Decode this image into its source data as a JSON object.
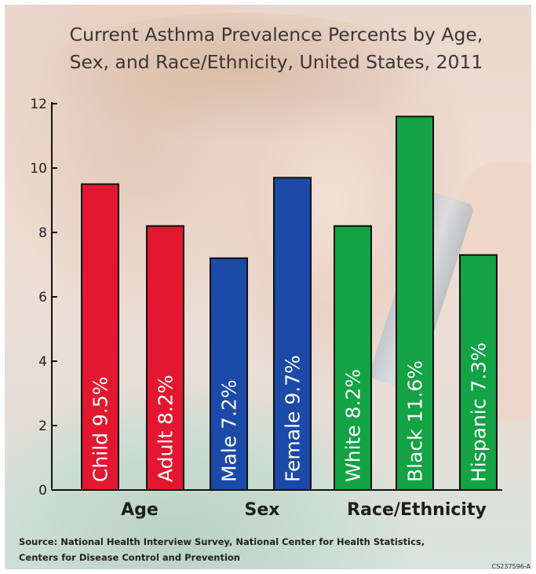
{
  "chart_data": {
    "type": "bar",
    "title": [
      "Current Asthma Prevalence Percents by Age,",
      "Sex, and Race/Ethnicity, United States, 2011"
    ],
    "ylim": [
      0,
      12
    ],
    "yticks": [
      "0",
      "2",
      "4",
      "6",
      "8",
      "10",
      "12"
    ],
    "grid": false,
    "categories": [
      "Child",
      "Adult",
      "Male",
      "Female",
      "White",
      "Black",
      "Hispanic"
    ],
    "values": [
      9.5,
      8.2,
      7.2,
      9.7,
      8.2,
      11.6,
      7.3
    ],
    "bar_labels": [
      "Child 9.5%",
      "Adult 8.2%",
      "Male 7.2%",
      "Female 9.7%",
      "White 8.2%",
      "Black 11.6%",
      "Hispanic 7.3%"
    ],
    "groups": [
      {
        "label": "Age",
        "indices": [
          0,
          1
        ],
        "color": "#e3172f"
      },
      {
        "label": "Sex",
        "indices": [
          2,
          3
        ],
        "color": "#1b4aa8"
      },
      {
        "label": "Race/Ethnicity",
        "indices": [
          4,
          5,
          6
        ],
        "color": "#13a244"
      }
    ]
  },
  "source": [
    "Source: National Health Interview Survey, National Center for Health Statistics,",
    "Centers for Disease Control and Prevention"
  ],
  "code": "CS237596-A"
}
